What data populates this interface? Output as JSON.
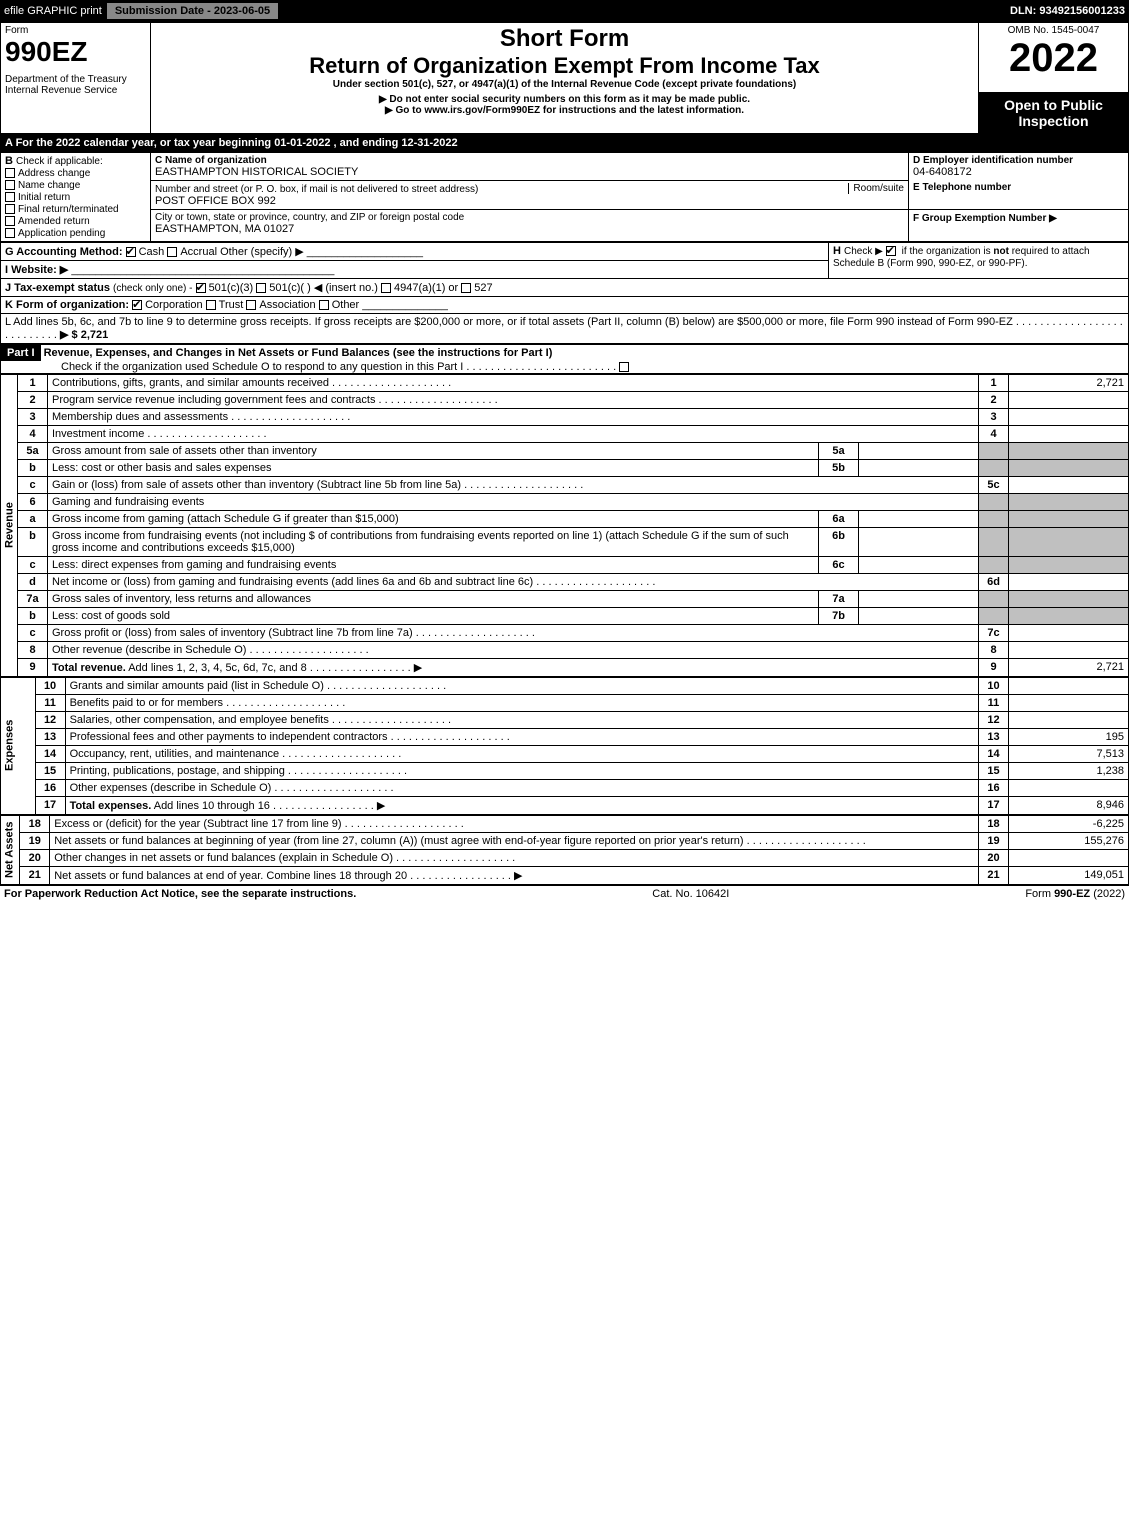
{
  "topbar": {
    "efile": "efile GRAPHIC print",
    "submission": "Submission Date - 2023-06-05",
    "dln": "DLN: 93492156001233"
  },
  "header": {
    "form_word": "Form",
    "form_number": "990EZ",
    "dept": "Department of the Treasury",
    "irs": "Internal Revenue Service",
    "title_short": "Short Form",
    "title_main": "Return of Organization Exempt From Income Tax",
    "subtitle": "Under section 501(c), 527, or 4947(a)(1) of the Internal Revenue Code (except private foundations)",
    "warn1": "▶ Do not enter social security numbers on this form as it may be made public.",
    "warn2": "▶ Go to www.irs.gov/Form990EZ for instructions and the latest information.",
    "omb": "OMB No. 1545-0047",
    "year": "2022",
    "open": "Open to Public Inspection"
  },
  "A": {
    "text": "A  For the 2022 calendar year, or tax year beginning 01-01-2022  , and ending 12-31-2022"
  },
  "B": {
    "label": "B",
    "check_if": "Check if applicable:",
    "items": [
      "Address change",
      "Name change",
      "Initial return",
      "Final return/terminated",
      "Amended return",
      "Application pending"
    ]
  },
  "C": {
    "name_label": "C Name of organization",
    "name": "EASTHAMPTON HISTORICAL SOCIETY",
    "street_label": "Number and street (or P. O. box, if mail is not delivered to street address)",
    "street": "POST OFFICE BOX 992",
    "room_label": "Room/suite",
    "city_label": "City or town, state or province, country, and ZIP or foreign postal code",
    "city": "EASTHAMPTON, MA  01027"
  },
  "D": {
    "label": "D Employer identification number",
    "value": "04-6408172"
  },
  "E": {
    "label": "E Telephone number",
    "value": ""
  },
  "F": {
    "label": "F Group Exemption Number   ▶",
    "value": ""
  },
  "G": {
    "label": "G Accounting Method:",
    "cash": "Cash",
    "accrual": "Accrual",
    "other": "Other (specify) ▶"
  },
  "H": {
    "label": "H",
    "text": "Check ▶       if the organization is not required to attach Schedule B (Form 990, 990-EZ, or 990-PF)."
  },
  "I": {
    "label": "I Website: ▶",
    "value": ""
  },
  "J": {
    "label": "J Tax-exempt status",
    "sub": "(check only one) -",
    "opts": "501(c)(3)    501(c)(  ) ◀ (insert no.)    4947(a)(1) or    527"
  },
  "K": {
    "label": "K Form of organization:",
    "opts": [
      "Corporation",
      "Trust",
      "Association",
      "Other"
    ]
  },
  "L": {
    "text": "L Add lines 5b, 6c, and 7b to line 9 to determine gross receipts. If gross receipts are $200,000 or more, or if total assets (Part II, column (B) below) are $500,000 or more, file Form 990 instead of Form 990-EZ",
    "amount": "▶ $ 2,721"
  },
  "part1": {
    "label": "Part I",
    "title": "Revenue, Expenses, and Changes in Net Assets or Fund Balances (see the instructions for Part I)",
    "check": "Check if the organization used Schedule O to respond to any question in this Part I"
  },
  "sections": {
    "revenue": "Revenue",
    "expenses": "Expenses",
    "netassets": "Net Assets"
  },
  "lines": [
    {
      "n": "1",
      "d": "Contributions, gifts, grants, and similar amounts received",
      "box": "1",
      "amt": "2,721"
    },
    {
      "n": "2",
      "d": "Program service revenue including government fees and contracts",
      "box": "2",
      "amt": ""
    },
    {
      "n": "3",
      "d": "Membership dues and assessments",
      "box": "3",
      "amt": ""
    },
    {
      "n": "4",
      "d": "Investment income",
      "box": "4",
      "amt": ""
    },
    {
      "n": "5a",
      "d": "Gross amount from sale of assets other than inventory",
      "sub": "5a",
      "subamt": "",
      "grey": true
    },
    {
      "n": "b",
      "d": "Less: cost or other basis and sales expenses",
      "sub": "5b",
      "subamt": "",
      "grey": true
    },
    {
      "n": "c",
      "d": "Gain or (loss) from sale of assets other than inventory (Subtract line 5b from line 5a)",
      "box": "5c",
      "amt": ""
    },
    {
      "n": "6",
      "d": "Gaming and fundraising events",
      "grey": true
    },
    {
      "n": "a",
      "d": "Gross income from gaming (attach Schedule G if greater than $15,000)",
      "sub": "6a",
      "subamt": "",
      "grey": true
    },
    {
      "n": "b",
      "d": "Gross income from fundraising events (not including $                    of contributions from fundraising events reported on line 1) (attach Schedule G if the sum of such gross income and contributions exceeds $15,000)",
      "sub": "6b",
      "subamt": "",
      "grey": true
    },
    {
      "n": "c",
      "d": "Less: direct expenses from gaming and fundraising events",
      "sub": "6c",
      "subamt": "",
      "grey": true
    },
    {
      "n": "d",
      "d": "Net income or (loss) from gaming and fundraising events (add lines 6a and 6b and subtract line 6c)",
      "box": "6d",
      "amt": ""
    },
    {
      "n": "7a",
      "d": "Gross sales of inventory, less returns and allowances",
      "sub": "7a",
      "subamt": "",
      "grey": true
    },
    {
      "n": "b",
      "d": "Less: cost of goods sold",
      "sub": "7b",
      "subamt": "",
      "grey": true
    },
    {
      "n": "c",
      "d": "Gross profit or (loss) from sales of inventory (Subtract line 7b from line 7a)",
      "box": "7c",
      "amt": ""
    },
    {
      "n": "8",
      "d": "Other revenue (describe in Schedule O)",
      "box": "8",
      "amt": ""
    },
    {
      "n": "9",
      "d": "Total revenue. Add lines 1, 2, 3, 4, 5c, 6d, 7c, and 8",
      "box": "9",
      "amt": "2,721",
      "bold": true,
      "arrow": true
    }
  ],
  "exp_lines": [
    {
      "n": "10",
      "d": "Grants and similar amounts paid (list in Schedule O)",
      "box": "10",
      "amt": ""
    },
    {
      "n": "11",
      "d": "Benefits paid to or for members",
      "box": "11",
      "amt": ""
    },
    {
      "n": "12",
      "d": "Salaries, other compensation, and employee benefits",
      "box": "12",
      "amt": ""
    },
    {
      "n": "13",
      "d": "Professional fees and other payments to independent contractors",
      "box": "13",
      "amt": "195"
    },
    {
      "n": "14",
      "d": "Occupancy, rent, utilities, and maintenance",
      "box": "14",
      "amt": "7,513"
    },
    {
      "n": "15",
      "d": "Printing, publications, postage, and shipping",
      "box": "15",
      "amt": "1,238"
    },
    {
      "n": "16",
      "d": "Other expenses (describe in Schedule O)",
      "box": "16",
      "amt": ""
    },
    {
      "n": "17",
      "d": "Total expenses. Add lines 10 through 16",
      "box": "17",
      "amt": "8,946",
      "bold": true,
      "arrow": true
    }
  ],
  "na_lines": [
    {
      "n": "18",
      "d": "Excess or (deficit) for the year (Subtract line 17 from line 9)",
      "box": "18",
      "amt": "-6,225"
    },
    {
      "n": "19",
      "d": "Net assets or fund balances at beginning of year (from line 27, column (A)) (must agree with end-of-year figure reported on prior year's return)",
      "box": "19",
      "amt": "155,276"
    },
    {
      "n": "20",
      "d": "Other changes in net assets or fund balances (explain in Schedule O)",
      "box": "20",
      "amt": ""
    },
    {
      "n": "21",
      "d": "Net assets or fund balances at end of year. Combine lines 18 through 20",
      "box": "21",
      "amt": "149,051",
      "arrow": true
    }
  ],
  "footer": {
    "left": "For Paperwork Reduction Act Notice, see the separate instructions.",
    "mid": "Cat. No. 10642I",
    "right": "Form 990-EZ (2022)"
  }
}
